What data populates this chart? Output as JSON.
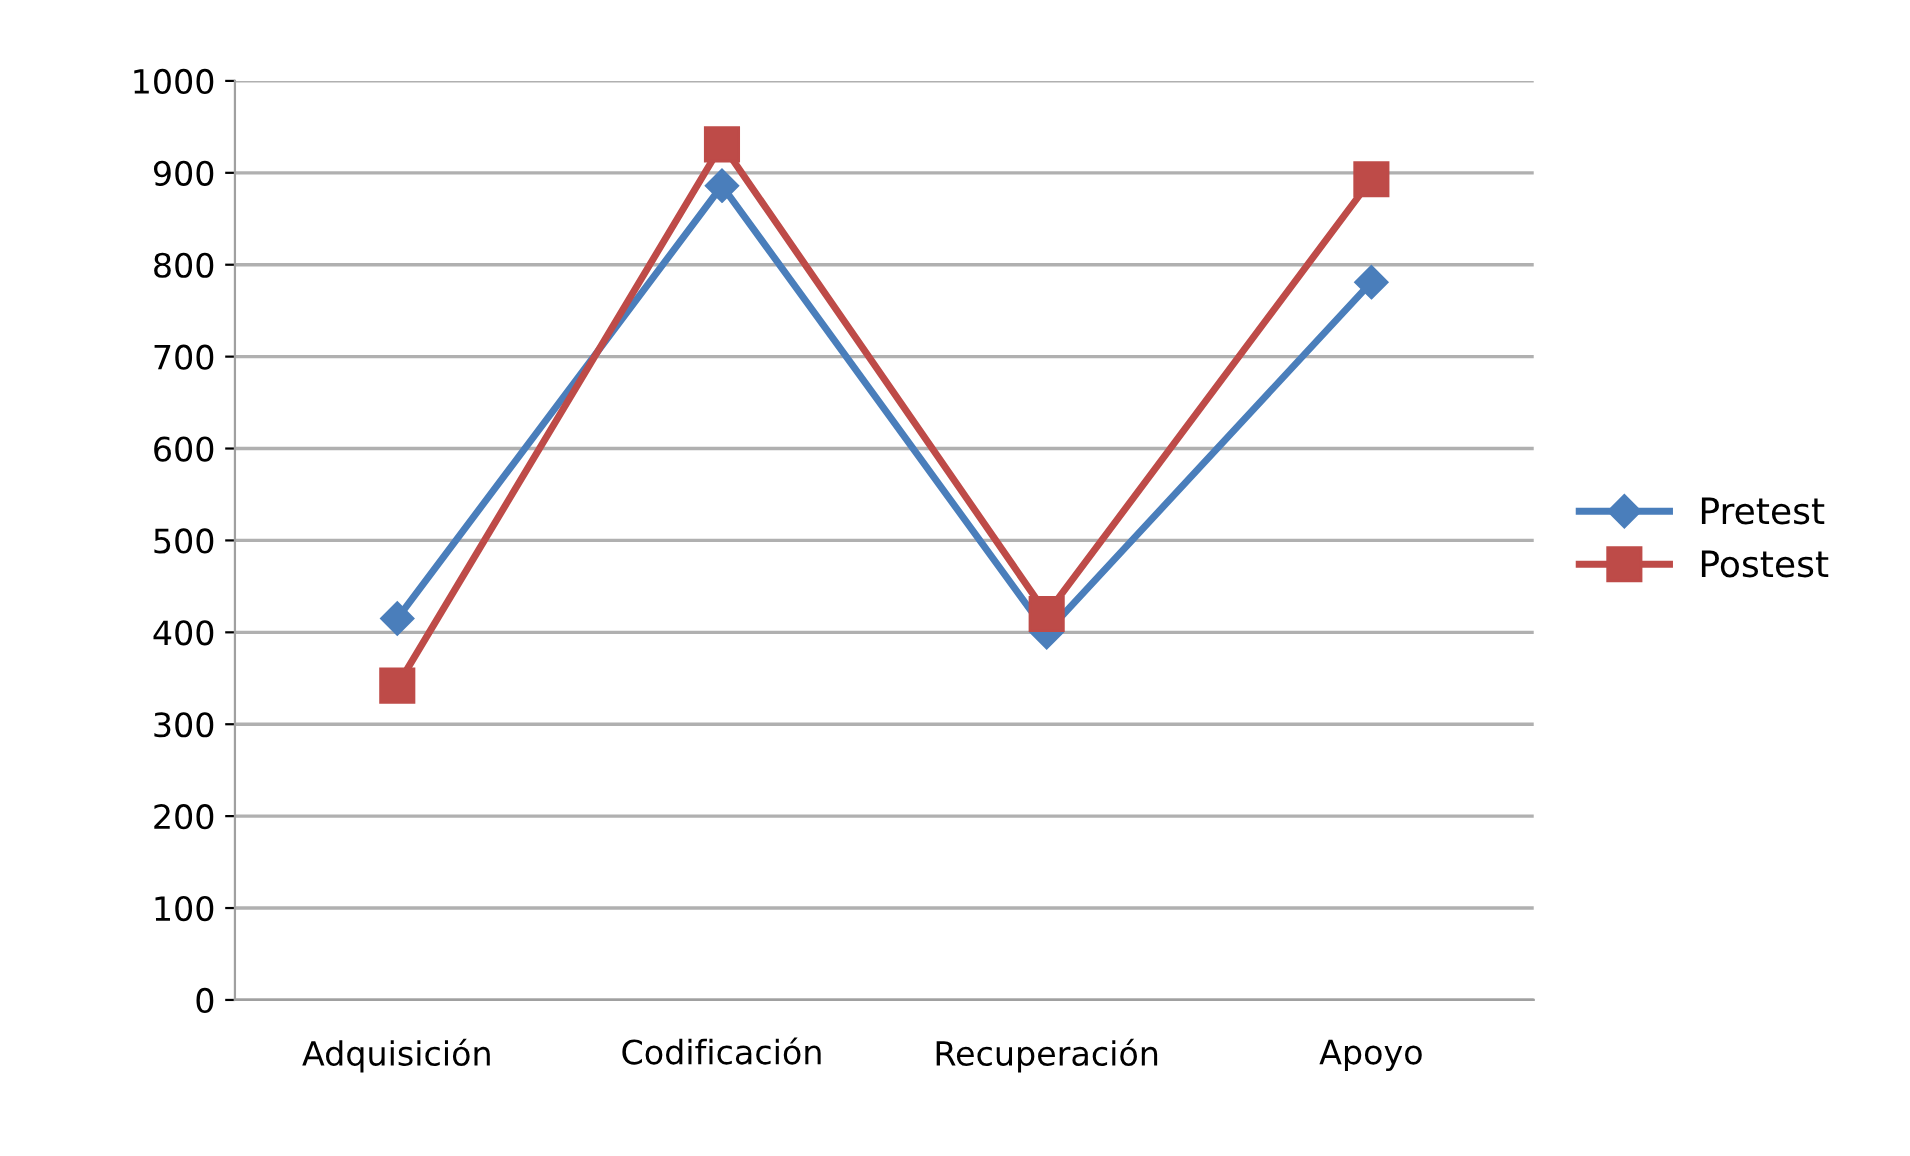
{
  "chart_data": {
    "type": "line",
    "categories": [
      "Adquisición",
      "Codificación",
      "Recuperación",
      "Apoyo"
    ],
    "series": [
      {
        "name": "Pretest",
        "color": "#4a7ebb",
        "values": [
          415,
          886,
          400,
          781
        ],
        "marker": "diamond"
      },
      {
        "name": "Postest",
        "color": "#be4b48",
        "values": [
          342,
          931,
          420,
          893
        ],
        "marker": "square"
      }
    ],
    "ylim": [
      0,
      1000
    ],
    "yticks": [
      0,
      100,
      200,
      300,
      400,
      500,
      600,
      700,
      800,
      900,
      1000
    ],
    "grid": "y",
    "legend": "right",
    "line_style": "solid"
  }
}
